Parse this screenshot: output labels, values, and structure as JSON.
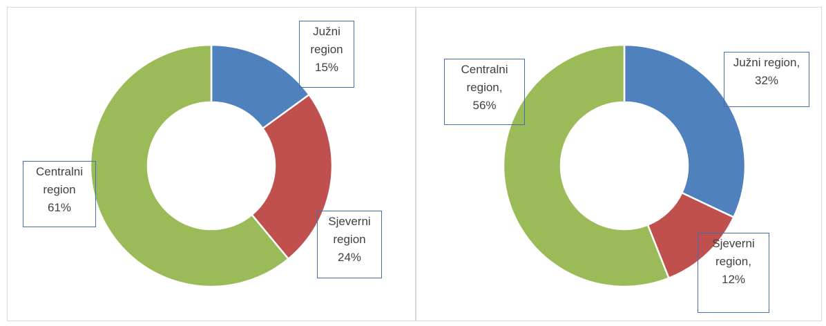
{
  "chart_data": [
    {
      "type": "donut",
      "categories": [
        "Južni region",
        "Sjeverni region",
        "Centralni region"
      ],
      "values": [
        15,
        24,
        61
      ],
      "value_labels": [
        "15%",
        "24%",
        "61%"
      ],
      "colors": [
        "#4f81bd",
        "#c0504d",
        "#9bbb59"
      ]
    },
    {
      "type": "donut",
      "categories": [
        "Južni region",
        "Sjeverni region",
        "Centralni region"
      ],
      "values": [
        32,
        12,
        56
      ],
      "value_labels": [
        "32%",
        "12%",
        "56%"
      ],
      "label_separator": ",",
      "colors": [
        "#4f81bd",
        "#c0504d",
        "#9bbb59"
      ]
    }
  ]
}
